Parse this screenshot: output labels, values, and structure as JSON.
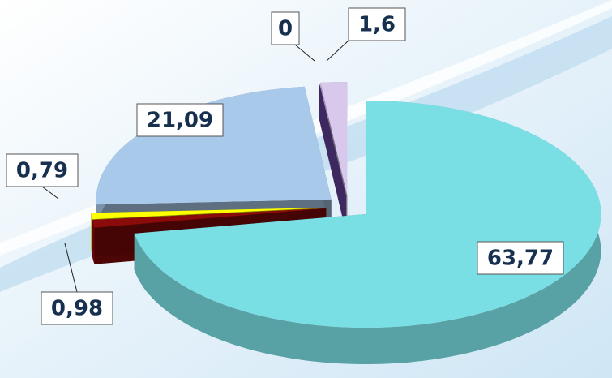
{
  "chart_data": {
    "type": "pie",
    "categories": [
      null,
      null,
      null,
      null,
      null,
      null
    ],
    "values": [
      63.77,
      0.98,
      0.79,
      21.09,
      0,
      1.6
    ],
    "value_labels": [
      "63,77",
      "0,98",
      "0,79",
      "21,09",
      "0",
      "1,6"
    ],
    "colors": [
      "#7adfe4",
      "#8b0a0a",
      "#ffff00",
      "#a9c9ea",
      "#7b4fc0",
      "#d8c9ec"
    ]
  }
}
